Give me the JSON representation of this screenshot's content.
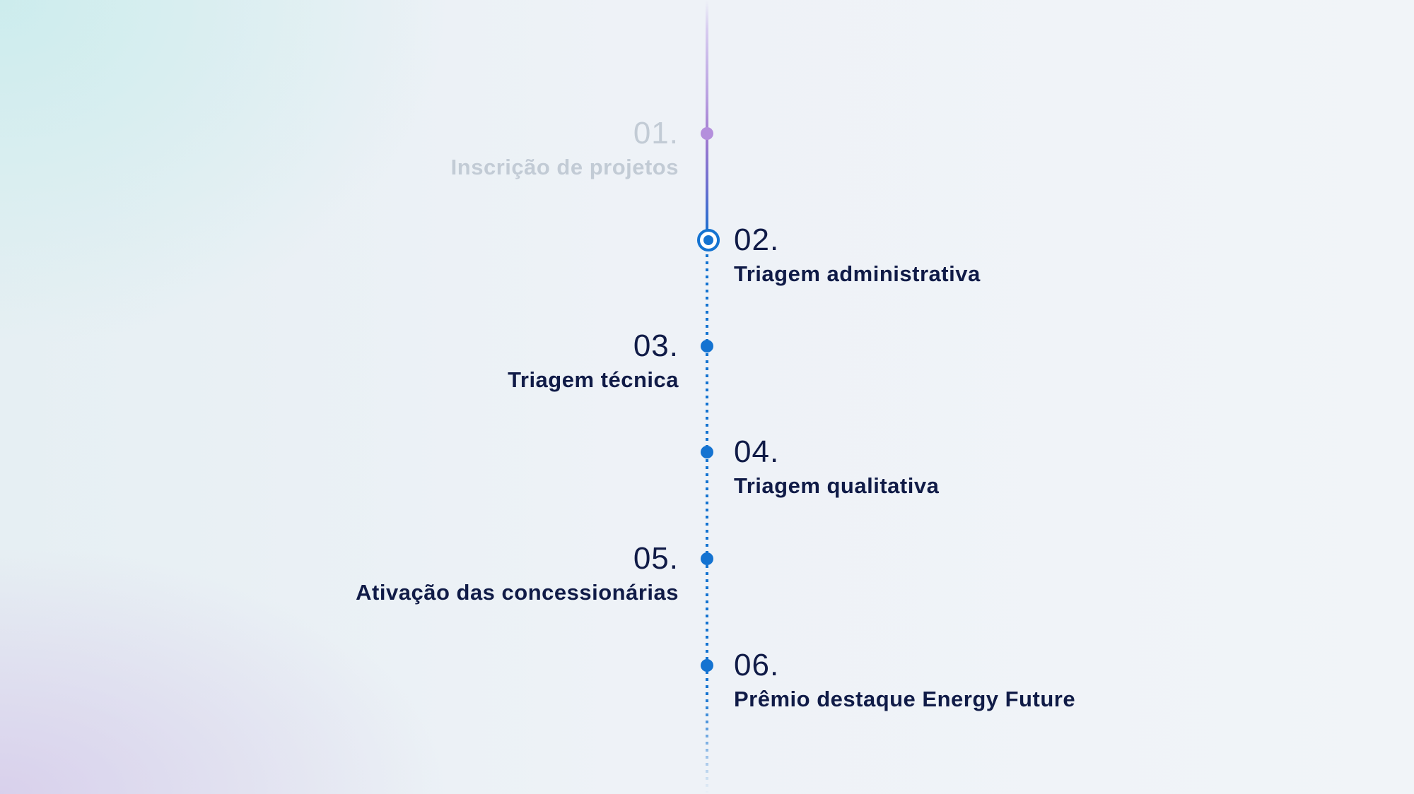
{
  "timeline": {
    "colors": {
      "accent": "#1473d1",
      "completed": "#b48fdc",
      "text": "#101b47",
      "faded_text": "#c2cbd5"
    },
    "steps": [
      {
        "number": "01.",
        "label": "Inscrição de projetos",
        "status": "completed"
      },
      {
        "number": "02.",
        "label": "Triagem administrativa",
        "status": "current"
      },
      {
        "number": "03.",
        "label": "Triagem técnica",
        "status": "upcoming"
      },
      {
        "number": "04.",
        "label": "Triagem qualitativa",
        "status": "upcoming"
      },
      {
        "number": "05.",
        "label": "Ativação das concessionárias",
        "status": "upcoming"
      },
      {
        "number": "06.",
        "label": "Prêmio destaque Energy Future",
        "status": "upcoming"
      }
    ]
  }
}
